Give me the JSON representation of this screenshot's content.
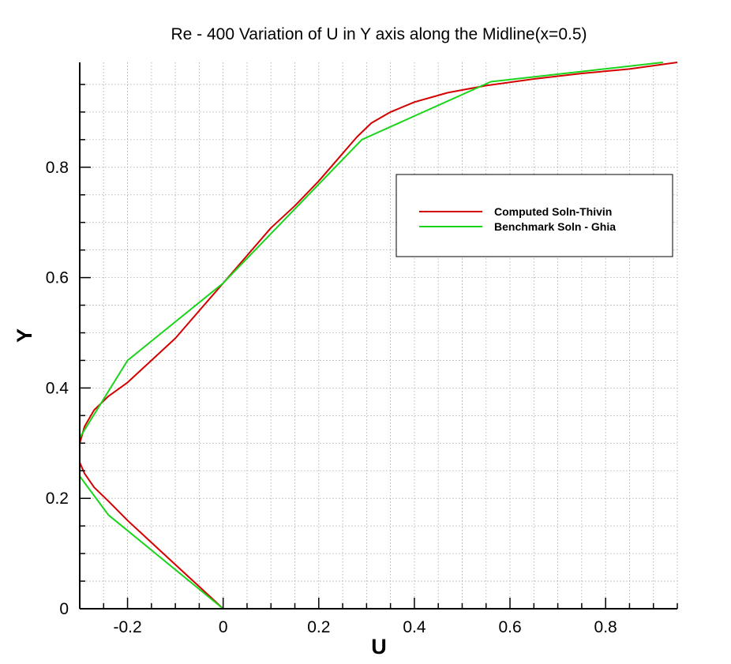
{
  "chart_data": {
    "type": "line",
    "title": "Re - 400 Variation of U in Y axis along the Midline(x=0.5)",
    "xlabel": "U",
    "ylabel": "Y",
    "xlim": [
      -0.3,
      0.95
    ],
    "ylim": [
      0,
      0.99
    ],
    "xticks": [
      -0.2,
      0,
      0.2,
      0.4,
      0.6,
      0.8
    ],
    "xtick_labels": [
      "-0.2",
      "0",
      "0.2",
      "0.4",
      "0.6",
      "0.8"
    ],
    "yticks": [
      0,
      0.2,
      0.4,
      0.6,
      0.8
    ],
    "ytick_labels": [
      "0",
      "0.2",
      "0.4",
      "0.6",
      "0.8"
    ],
    "grid": true,
    "legend_position": "top-right",
    "series": [
      {
        "name": "Computed Soln-Thivin",
        "color": "#d40000",
        "x": [
          0,
          -0.05,
          -0.1,
          -0.15,
          -0.2,
          -0.24,
          -0.27,
          -0.29,
          -0.3,
          -0.3,
          -0.29,
          -0.27,
          -0.24,
          -0.2,
          -0.15,
          -0.1,
          -0.05,
          0,
          0.05,
          0.1,
          0.15,
          0.2,
          0.25,
          0.28,
          0.31,
          0.35,
          0.4,
          0.47,
          0.55,
          0.65,
          0.75,
          0.85,
          0.95
        ],
        "y": [
          0,
          0.04,
          0.08,
          0.12,
          0.16,
          0.195,
          0.22,
          0.245,
          0.265,
          0.3,
          0.33,
          0.36,
          0.385,
          0.41,
          0.45,
          0.49,
          0.54,
          0.59,
          0.64,
          0.69,
          0.73,
          0.775,
          0.825,
          0.855,
          0.88,
          0.9,
          0.918,
          0.935,
          0.948,
          0.96,
          0.97,
          0.978,
          0.99
        ]
      },
      {
        "name": "Benchmark Soln - Ghia",
        "color": "#19d419",
        "x": [
          0,
          -0.24,
          -0.3,
          -0.3,
          -0.2,
          0,
          0.29,
          0.56,
          0.92
        ],
        "y": [
          0,
          0.17,
          0.24,
          0.31,
          0.45,
          0.59,
          0.85,
          0.955,
          0.99
        ]
      }
    ]
  }
}
